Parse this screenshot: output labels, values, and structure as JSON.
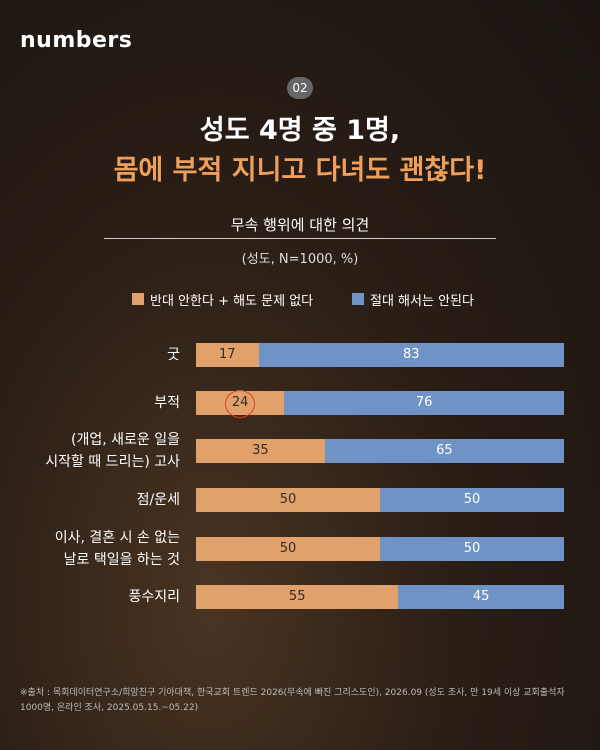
{
  "brand": "numbers",
  "badge": "02",
  "chart_data": {
    "type": "stacked-bar-horizontal",
    "title": [
      "성도 4명 중 1명,",
      "몸에 부적 지니고 다녀도 괜찮다!"
    ],
    "subtitle": "무속 행위에 대한 의견",
    "note": "(성도, N=1000, %)",
    "categories": [
      "굿",
      "부적",
      "(개업, 새로운 일을\n시작할 때 드리는) 고사",
      "점/운세",
      "이사, 결혼 시 손 없는\n날로 택일을 하는 것",
      "풍수지리"
    ],
    "series": [
      {
        "name": "반대 안한다 + 해도 문제 없다",
        "color": "#e0a26a",
        "values": [
          17,
          24,
          35,
          50,
          50,
          55
        ]
      },
      {
        "name": "절대 해서는 안된다",
        "color": "#6f93c4",
        "values": [
          83,
          76,
          65,
          50,
          50,
          45
        ]
      }
    ],
    "xlim": [
      0,
      100
    ]
  },
  "source": "※출처 : 목회데이터연구소/희망친구 기아대책, 한국교회 트렌드 2026(무속에 빠진 그리스도인), 2026.09 (성도 조사, 만 19세 이상 교회출석자 1000명, 온라인 조사, 2025.05.15.~05.22)"
}
